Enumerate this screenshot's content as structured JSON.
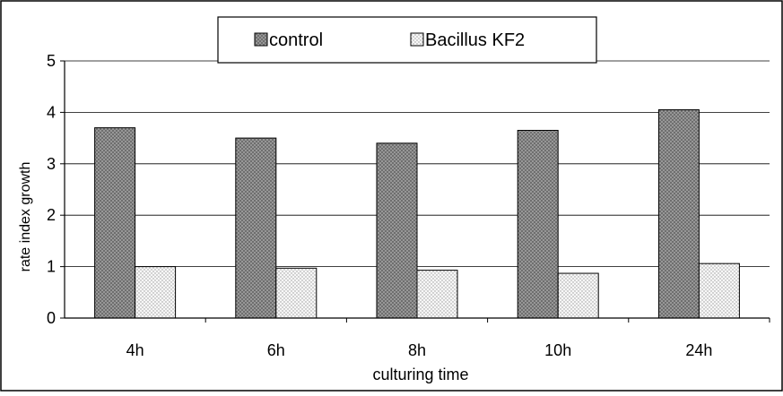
{
  "chart_data": {
    "type": "bar",
    "title": "",
    "xlabel": "culturing time",
    "ylabel": "rate index growth",
    "categories": [
      "4h",
      "6h",
      "8h",
      "10h",
      "24h"
    ],
    "series": [
      {
        "name": "control",
        "values": [
          3.7,
          3.5,
          3.4,
          3.65,
          4.05
        ],
        "pattern": "dark-crosshatch",
        "color": "#9a9a9a"
      },
      {
        "name": "Bacillus KF2",
        "values": [
          1.0,
          0.97,
          0.93,
          0.87,
          1.06
        ],
        "pattern": "light-dots",
        "color": "#e6e6e6"
      }
    ],
    "ylim": [
      0,
      5
    ],
    "yticks": [
      "0",
      "1",
      "2",
      "3",
      "4",
      "5"
    ],
    "grid": true,
    "legend_position": "top-center"
  }
}
